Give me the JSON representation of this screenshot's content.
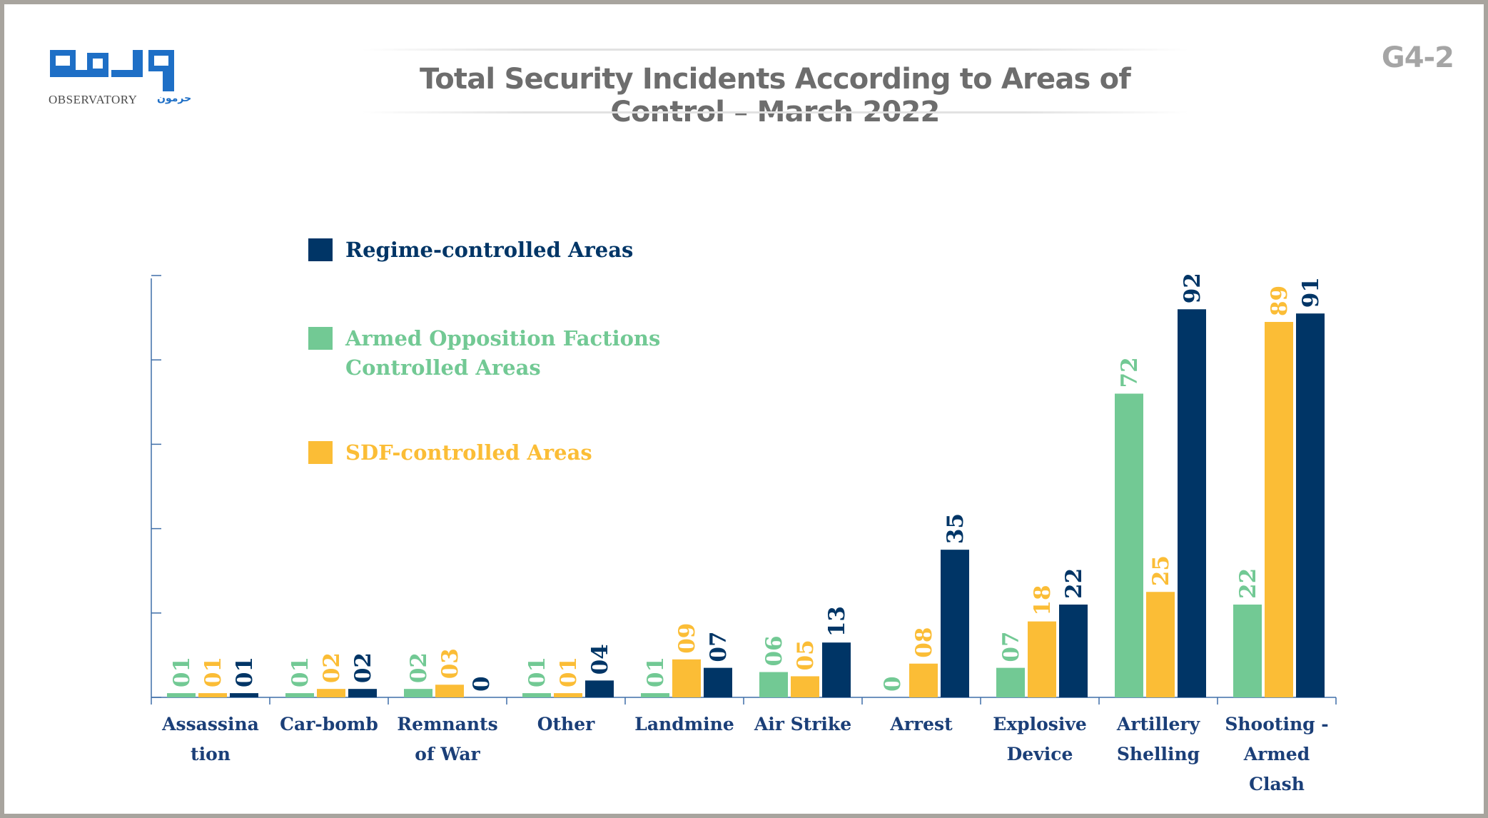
{
  "header": {
    "title": "Total Security Incidents According to Areas of Control – March 2022",
    "code": "G4-2"
  },
  "logo": {
    "arabic": "مرصد",
    "sub": "OBSERVATORY",
    "arabic_small": "حرمون",
    "color": "#1e6fc6"
  },
  "legend": {
    "items": [
      {
        "label": "Regime-controlled Areas",
        "color": "#003566"
      },
      {
        "label": "Armed Opposition Factions Controlled Areas",
        "color": "#72c994"
      },
      {
        "label": "SDF-controlled Areas",
        "color": "#fbbd36"
      }
    ]
  },
  "chart_data": {
    "type": "bar",
    "title": "Total Security Incidents According to Areas of Control – March 2022",
    "xlabel": "",
    "ylabel": "",
    "ylim": [
      0,
      100
    ],
    "grid": false,
    "legend_position": "top-left",
    "categories": [
      [
        "Assassina",
        "tion"
      ],
      [
        "Car-bomb"
      ],
      [
        "Remnants",
        "of War"
      ],
      [
        "Other"
      ],
      [
        "Landmine"
      ],
      [
        "Air Strike"
      ],
      [
        "Arrest"
      ],
      [
        "Explosive",
        "Device"
      ],
      [
        "Artillery",
        "Shelling"
      ],
      [
        "Shooting -",
        "Armed",
        "Clash"
      ]
    ],
    "series": [
      {
        "name": "Armed Opposition Factions Controlled Areas",
        "color": "#72c994",
        "values": [
          1,
          1,
          2,
          1,
          1,
          6,
          0,
          7,
          72,
          22
        ],
        "labels": [
          "01",
          "01",
          "02",
          "01",
          "01",
          "06",
          "0",
          "07",
          "72",
          "22"
        ]
      },
      {
        "name": "SDF-controlled Areas",
        "color": "#fbbd36",
        "values": [
          1,
          2,
          3,
          1,
          9,
          5,
          8,
          18,
          25,
          89
        ],
        "labels": [
          "01",
          "02",
          "03",
          "01",
          "09",
          "05",
          "08",
          "18",
          "25",
          "89"
        ]
      },
      {
        "name": "Regime-controlled Areas",
        "color": "#003566",
        "values": [
          1,
          2,
          0,
          4,
          7,
          13,
          35,
          22,
          92,
          91
        ],
        "labels": [
          "01",
          "02",
          "0",
          "04",
          "07",
          "13",
          "35",
          "22",
          "92",
          "91"
        ]
      }
    ],
    "category_color": "#1b3f78",
    "axis_color": "#3f6ea8"
  }
}
